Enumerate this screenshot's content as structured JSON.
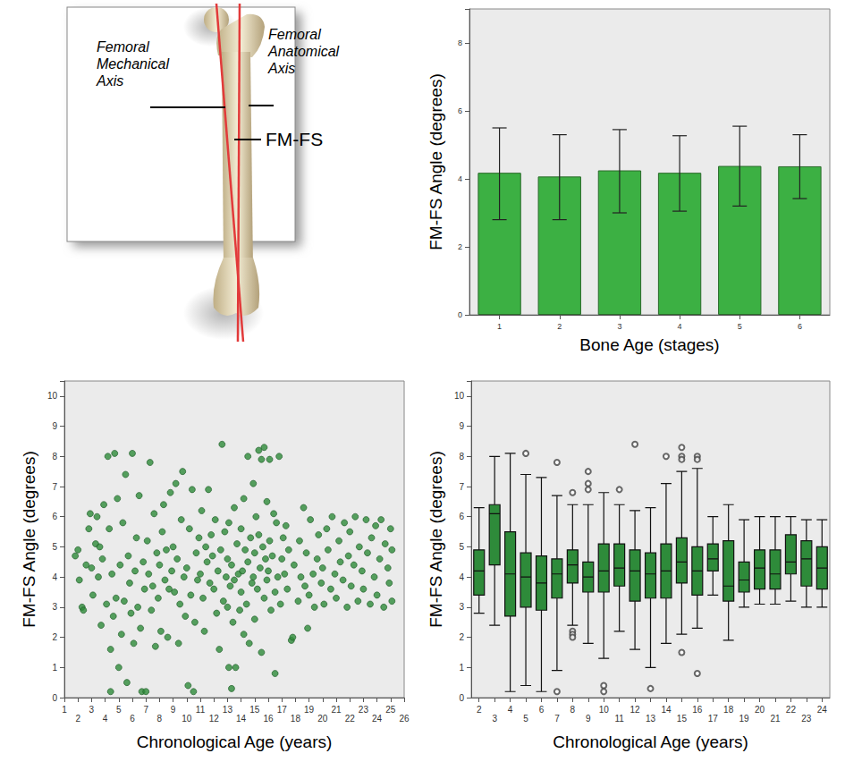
{
  "diagram": {
    "labels": {
      "mechanical": "Femoral Mechanical Axis",
      "anatomical": "Femoral Anatomical Axis",
      "angle": "FM-FS"
    }
  },
  "chart_data": [
    {
      "type": "bar",
      "x_label": "Bone Age (stages)",
      "y_label": "FM-FS Angle (degrees)",
      "categories": [
        "1",
        "2",
        "3",
        "4",
        "5",
        "6"
      ],
      "values": [
        4.18,
        4.07,
        4.25,
        4.18,
        4.38,
        4.37
      ],
      "error": [
        [
          2.8,
          5.5
        ],
        [
          2.8,
          5.3
        ],
        [
          3.0,
          5.45
        ],
        [
          3.05,
          5.27
        ],
        [
          3.2,
          5.55
        ],
        [
          3.42,
          5.3
        ]
      ],
      "color": "#3cb043",
      "ylim": [
        0,
        9
      ],
      "yticks": [
        0,
        2,
        4,
        6,
        8
      ],
      "grid": false
    },
    {
      "type": "scatter",
      "x_label": "Chronological Age (years)",
      "y_label": "FM-FS Angle (degrees)",
      "x": [
        1.8,
        2.0,
        2.1,
        2.3,
        2.4,
        2.6,
        2.8,
        2.9,
        3.0,
        3.1,
        3.3,
        3.4,
        3.5,
        3.6,
        3.7,
        3.8,
        3.9,
        4.1,
        4.2,
        4.3,
        4.4,
        4.4,
        4.5,
        4.6,
        4.7,
        4.8,
        4.9,
        5.0,
        5.1,
        5.2,
        5.3,
        5.4,
        5.5,
        5.6,
        5.7,
        5.8,
        5.9,
        6.0,
        6.1,
        6.2,
        6.3,
        6.4,
        6.5,
        6.6,
        6.7,
        6.8,
        6.9,
        7.0,
        7.1,
        7.2,
        7.3,
        7.4,
        7.5,
        7.6,
        7.7,
        7.8,
        7.9,
        8.0,
        8.1,
        8.2,
        8.3,
        8.4,
        8.5,
        8.6,
        8.7,
        8.8,
        8.9,
        9.0,
        9.1,
        9.2,
        9.3,
        9.4,
        9.5,
        9.6,
        9.7,
        9.8,
        9.9,
        10.0,
        10.1,
        10.2,
        10.3,
        10.4,
        10.5,
        10.6,
        10.7,
        10.8,
        10.9,
        11.0,
        11.1,
        11.2,
        11.3,
        11.4,
        11.5,
        11.6,
        11.7,
        11.8,
        11.9,
        12.0,
        12.1,
        12.2,
        12.3,
        12.4,
        12.5,
        12.6,
        12.7,
        12.8,
        12.9,
        13.0,
        13.0,
        13.1,
        13.1,
        13.2,
        13.3,
        13.3,
        13.4,
        13.5,
        13.5,
        13.6,
        13.7,
        13.8,
        13.9,
        14.0,
        14.0,
        14.1,
        14.2,
        14.2,
        14.3,
        14.4,
        14.5,
        14.5,
        14.6,
        14.7,
        14.8,
        14.9,
        14.9,
        15.0,
        15.0,
        15.1,
        15.2,
        15.3,
        15.3,
        15.4,
        15.5,
        15.5,
        15.6,
        15.7,
        15.7,
        15.8,
        15.9,
        15.9,
        16.0,
        16.1,
        16.1,
        16.2,
        16.3,
        16.4,
        16.5,
        16.5,
        16.6,
        16.7,
        16.8,
        16.9,
        17.0,
        17.1,
        17.2,
        17.3,
        17.4,
        17.5,
        17.7,
        17.8,
        17.9,
        18.2,
        18.3,
        18.4,
        18.6,
        18.7,
        18.8,
        18.9,
        19.0,
        19.1,
        19.3,
        19.4,
        19.6,
        19.7,
        19.9,
        20.0,
        20.1,
        20.3,
        20.4,
        20.6,
        20.7,
        20.9,
        21.0,
        21.2,
        21.3,
        21.5,
        21.6,
        21.8,
        21.9,
        22.0,
        22.1,
        22.3,
        22.4,
        22.6,
        22.7,
        22.9,
        23.0,
        23.2,
        23.3,
        23.5,
        23.6,
        23.8,
        23.9,
        24.0,
        24.2,
        24.3,
        24.5,
        24.6,
        24.8,
        24.9,
        25.0,
        25.1,
        25.1
      ],
      "values": [
        4.7,
        4.9,
        3.9,
        3.0,
        2.9,
        4.4,
        5.6,
        6.1,
        4.3,
        3.4,
        5.1,
        6.0,
        4.0,
        5.0,
        2.4,
        4.6,
        6.4,
        3.1,
        8.0,
        5.6,
        1.6,
        0.2,
        4.1,
        2.7,
        8.1,
        3.3,
        6.6,
        1.0,
        4.4,
        2.1,
        5.8,
        3.2,
        7.4,
        0.5,
        4.7,
        3.8,
        2.8,
        8.1,
        1.8,
        4.2,
        5.3,
        3.0,
        6.7,
        2.3,
        0.2,
        4.5,
        3.6,
        0.2,
        5.2,
        4.1,
        7.8,
        2.9,
        3.7,
        6.1,
        1.7,
        4.8,
        3.3,
        4.4,
        2.2,
        5.5,
        6.4,
        3.9,
        4.9,
        2.0,
        3.6,
        6.8,
        4.2,
        5.0,
        3.5,
        7.1,
        4.6,
        1.8,
        3.1,
        5.9,
        7.5,
        4.0,
        2.7,
        4.3,
        0.4,
        5.6,
        3.4,
        6.9,
        0.2,
        2.5,
        4.8,
        3.9,
        5.3,
        4.1,
        6.2,
        3.3,
        2.2,
        5.0,
        4.5,
        6.9,
        3.8,
        5.4,
        4.7,
        3.6,
        5.9,
        2.8,
        4.2,
        1.6,
        4.9,
        8.4,
        3.2,
        5.5,
        4.0,
        3.0,
        4.6,
        1.0,
        5.8,
        3.7,
        0.3,
        4.4,
        2.5,
        6.3,
        3.9,
        1.0,
        5.1,
        4.1,
        2.9,
        3.5,
        5.6,
        4.2,
        2.1,
        6.6,
        4.9,
        3.1,
        8.0,
        4.5,
        1.8,
        5.3,
        3.8,
        7.1,
        4.0,
        4.8,
        2.6,
        6.0,
        3.6,
        8.2,
        5.4,
        4.3,
        1.5,
        7.9,
        5.0,
        3.3,
        8.3,
        4.6,
        6.5,
        3.9,
        4.2,
        7.9,
        5.2,
        2.9,
        4.7,
        6.1,
        3.5,
        0.8,
        5.8,
        4.0,
        8.0,
        3.1,
        4.6,
        5.3,
        4.1,
        5.7,
        3.6,
        4.9,
        1.9,
        2.0,
        4.4,
        3.2,
        5.2,
        4.0,
        6.3,
        3.7,
        4.8,
        2.3,
        3.4,
        5.9,
        4.1,
        3.0,
        4.6,
        5.4,
        3.8,
        4.3,
        3.1,
        5.6,
        4.9,
        3.6,
        6.0,
        4.1,
        3.3,
        5.2,
        4.5,
        3.9,
        5.8,
        3.0,
        4.7,
        5.5,
        3.7,
        4.4,
        6.0,
        3.2,
        5.0,
        4.2,
        3.6,
        5.9,
        4.8,
        3.1,
        5.3,
        4.0,
        5.7,
        3.4,
        4.6,
        5.9,
        3.0,
        5.1,
        4.3,
        3.8,
        5.6,
        3.2,
        4.9
      ],
      "color": "#2e8b3a",
      "marker": "circle",
      "xlim": [
        1,
        26
      ],
      "xticks": [
        1,
        2,
        3,
        4,
        5,
        6,
        7,
        8,
        9,
        10,
        11,
        12,
        13,
        14,
        15,
        16,
        17,
        18,
        19,
        20,
        21,
        22,
        23,
        24,
        25,
        26
      ],
      "ylim": [
        0,
        10.5
      ],
      "yticks": [
        0,
        1,
        2,
        3,
        4,
        5,
        6,
        7,
        8,
        9,
        10
      ],
      "grid": false
    },
    {
      "type": "boxplot",
      "x_label": "Chronological Age (years)",
      "y_label": "FM-FS Angle (degrees)",
      "categories": [
        "2",
        "3",
        "4",
        "5",
        "6",
        "7",
        "8",
        "9",
        "10",
        "11",
        "12",
        "13",
        "14",
        "15",
        "16",
        "17",
        "18",
        "19",
        "20",
        "21",
        "22",
        "23",
        "24"
      ],
      "values": [
        [
          2.8,
          3.4,
          4.2,
          4.9,
          6.3
        ],
        [
          2.4,
          4.4,
          6.1,
          6.4,
          8.0
        ],
        [
          0.2,
          2.7,
          4.1,
          5.5,
          8.1
        ],
        [
          0.4,
          3.0,
          4.0,
          4.8,
          7.4
        ],
        [
          0.2,
          2.9,
          3.8,
          4.7,
          7.3
        ],
        [
          0.9,
          3.3,
          4.1,
          4.6,
          6.7
        ],
        [
          2.4,
          3.8,
          4.4,
          4.9,
          6.4
        ],
        [
          1.8,
          3.5,
          4.0,
          4.5,
          6.4
        ],
        [
          1.3,
          3.5,
          4.2,
          5.1,
          6.8
        ],
        [
          2.2,
          3.7,
          4.3,
          5.1,
          6.4
        ],
        [
          1.6,
          3.2,
          4.2,
          4.9,
          6.2
        ],
        [
          1.0,
          3.3,
          4.1,
          4.8,
          6.3
        ],
        [
          1.8,
          3.3,
          4.2,
          5.1,
          7.1
        ],
        [
          2.1,
          3.8,
          4.5,
          5.3,
          7.5
        ],
        [
          2.3,
          3.4,
          4.2,
          5.0,
          7.6
        ],
        [
          3.4,
          4.2,
          4.6,
          5.1,
          6.0
        ],
        [
          1.9,
          3.2,
          3.7,
          5.2,
          6.4
        ],
        [
          3.0,
          3.5,
          3.9,
          4.5,
          5.9
        ],
        [
          3.1,
          3.6,
          4.3,
          4.9,
          6.0
        ],
        [
          3.1,
          3.6,
          4.1,
          4.9,
          6.0
        ],
        [
          3.2,
          4.1,
          4.5,
          5.4,
          6.0
        ],
        [
          3.0,
          3.7,
          4.6,
          5.2,
          5.9
        ],
        [
          3.0,
          3.6,
          4.3,
          5.0,
          5.9
        ]
      ],
      "outliers": [
        [
          "5",
          8.1
        ],
        [
          "7",
          7.8
        ],
        [
          "7",
          0.2
        ],
        [
          "8",
          6.8
        ],
        [
          "8",
          2.2
        ],
        [
          "8",
          2.1
        ],
        [
          "8",
          2.0
        ],
        [
          "9",
          7.5
        ],
        [
          "9",
          7.1
        ],
        [
          "9",
          6.9
        ],
        [
          "10",
          0.4
        ],
        [
          "10",
          0.2
        ],
        [
          "11",
          6.9
        ],
        [
          "12",
          8.4
        ],
        [
          "13",
          0.3
        ],
        [
          "14",
          8.0
        ],
        [
          "15",
          8.3
        ],
        [
          "15",
          8.0
        ],
        [
          "15",
          7.9
        ],
        [
          "15",
          1.5
        ],
        [
          "16",
          8.0
        ],
        [
          "16",
          7.9
        ],
        [
          "16",
          0.8
        ]
      ],
      "color": "#2e8b3a",
      "ylim": [
        0,
        10.5
      ],
      "yticks": [
        0,
        1,
        2,
        3,
        4,
        5,
        6,
        7,
        8,
        9,
        10
      ],
      "grid": false
    }
  ]
}
